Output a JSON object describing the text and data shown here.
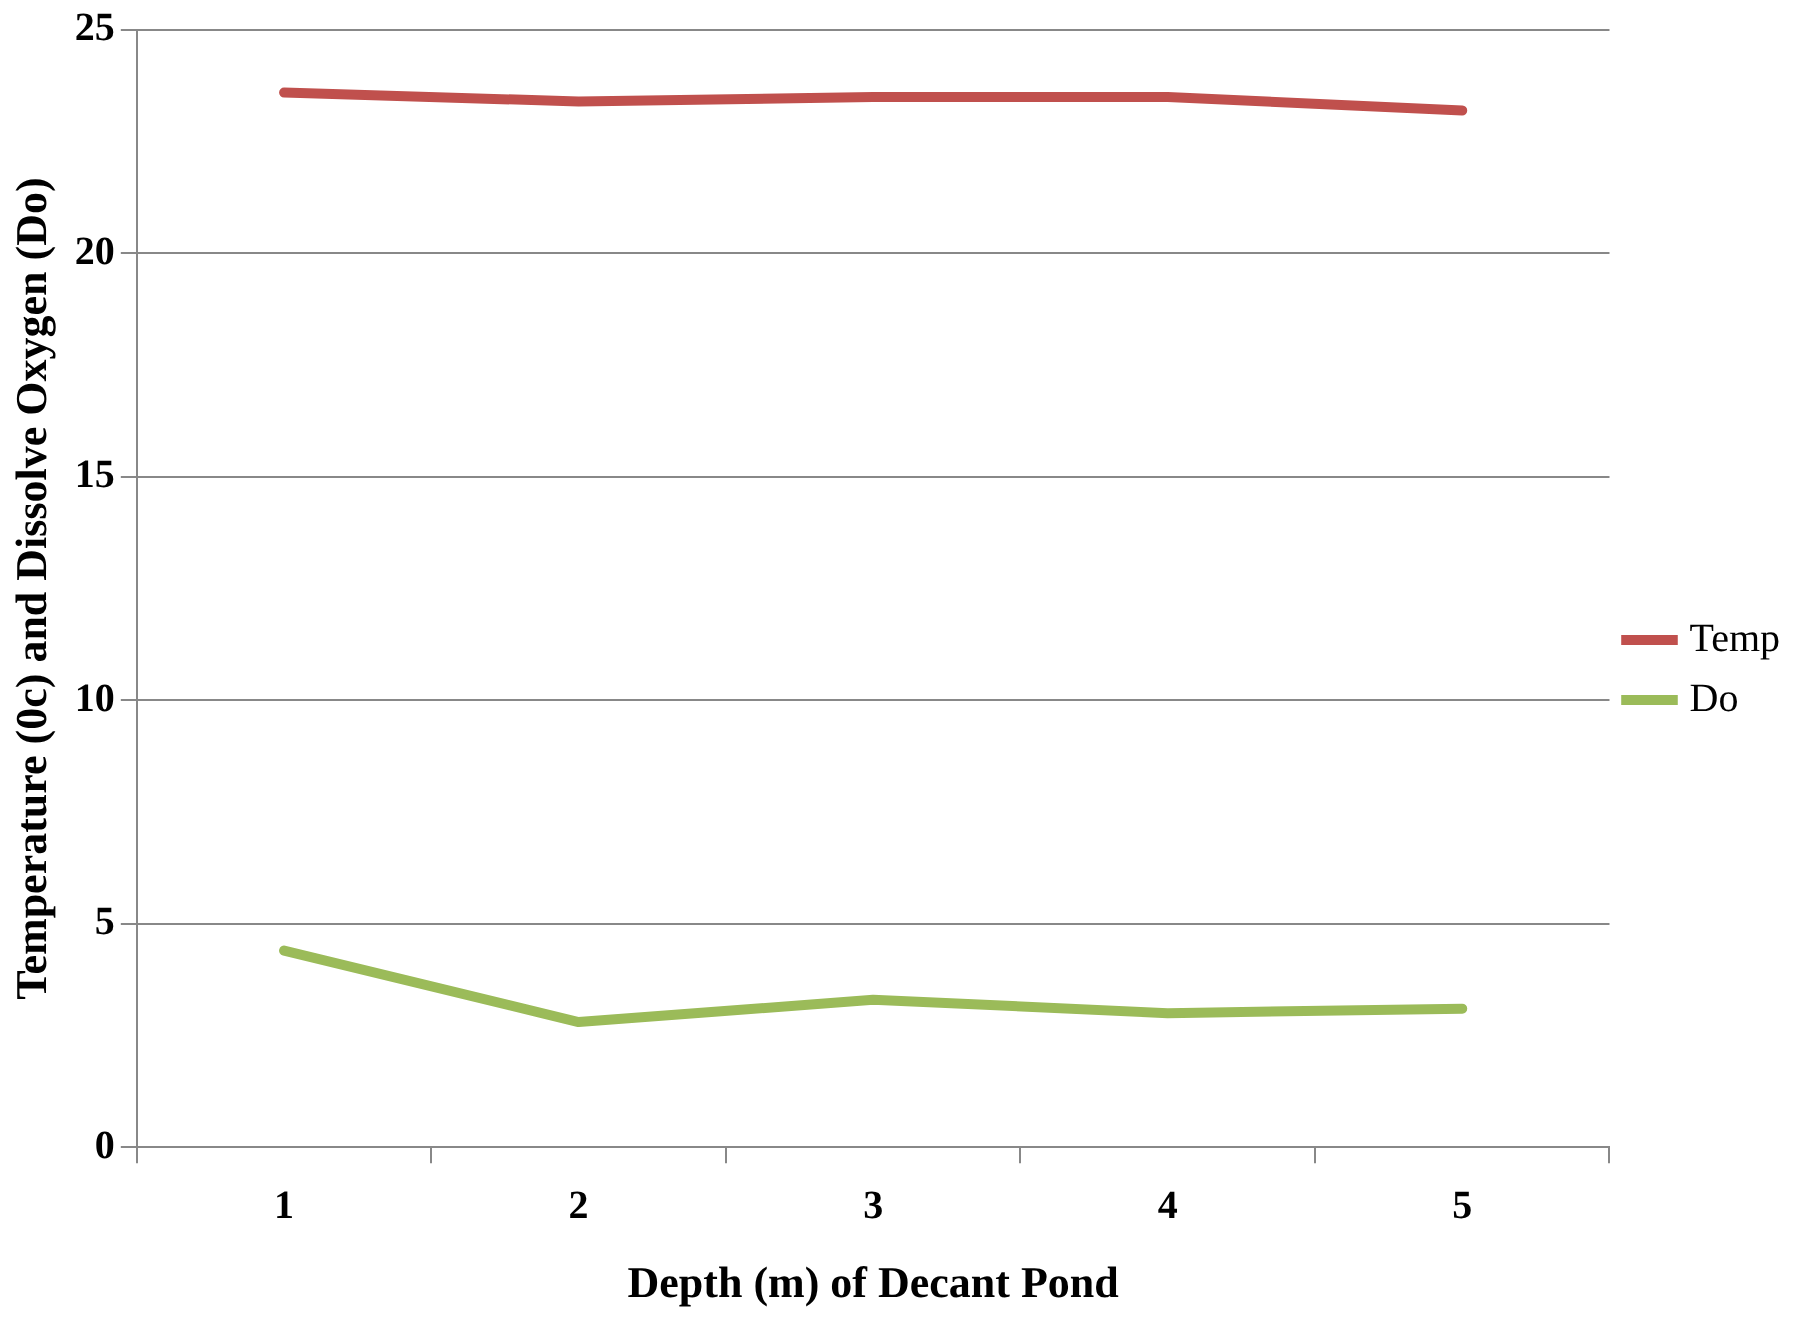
{
  "chart_data": {
    "type": "line",
    "xlabel": "Depth (m) of Decant Pond",
    "ylabel": "Temperature (0c) and Dissolve Oxygen (Do)",
    "categories": [
      "1",
      "2",
      "3",
      "4",
      "5"
    ],
    "series": [
      {
        "name": "Temp",
        "color": "#c0504d",
        "values": [
          23.6,
          23.4,
          23.5,
          23.5,
          23.2
        ]
      },
      {
        "name": "Do",
        "color": "#9bbb59",
        "values": [
          4.4,
          2.8,
          3.3,
          3.0,
          3.1
        ]
      }
    ],
    "ylim": [
      0,
      25
    ],
    "yticks": [
      0,
      5,
      10,
      15,
      20,
      25
    ],
    "grid": "y",
    "legend": "right",
    "marker": "none",
    "line_style": "solid"
  }
}
